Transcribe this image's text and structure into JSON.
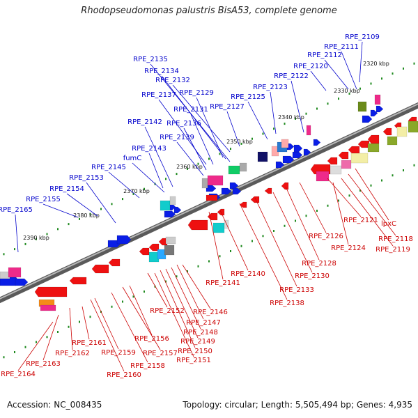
{
  "title": "Rhodopseudomonas palustris BisA53, complete genome",
  "footer": {
    "accession": "Accession: NC_008435",
    "topology": "Topology: circular; Length: 5,505,494 bp; Genes: 4,935"
  },
  "colors": {
    "forward_label": "#0000cc",
    "reverse_label": "#cc0000",
    "backbone": "#7a7a7a",
    "scale_dot": "#1f8a1f"
  },
  "kbp_ticks": [
    "2320 kbp",
    "2330 kbp",
    "2340 kbp",
    "2350 kbp",
    "2360 kbp",
    "2370 kbp",
    "2380 kbp",
    "2390 kbp"
  ],
  "forward_genes": [
    "RPE_2109",
    "RPE_2111",
    "RPE_2112",
    "RPE_2120",
    "RPE_2122",
    "RPE_2123",
    "RPE_2125",
    "RPE_2127",
    "RPE_2129",
    "RPE_2131",
    "RPE_2136",
    "RPE_2137",
    "RPE_2132",
    "RPE_2134",
    "RPE_2135",
    "RPE_2139",
    "RPE_2142",
    "RPE_2143",
    "fumC",
    "RPE_2145",
    "RPE_2153",
    "RPE_2154",
    "RPE_2155",
    "RPE_2165"
  ],
  "reverse_genes": [
    "lpxC",
    "RPE_2118",
    "RPE_2119",
    "RPE_2121",
    "RPE_2124",
    "RPE_2126",
    "RPE_2128",
    "RPE_2130",
    "RPE_2133",
    "RPE_2138",
    "RPE_2140",
    "RPE_2141",
    "RPE_2146",
    "RPE_2147",
    "RPE_2148",
    "RPE_2149",
    "RPE_2150",
    "RPE_2151",
    "RPE_2152",
    "RPE_2156",
    "RPE_2157",
    "RPE_2158",
    "RPE_2159",
    "RPE_2160",
    "RPE_2161",
    "RPE_2162",
    "RPE_2163",
    "RPE_2164"
  ]
}
